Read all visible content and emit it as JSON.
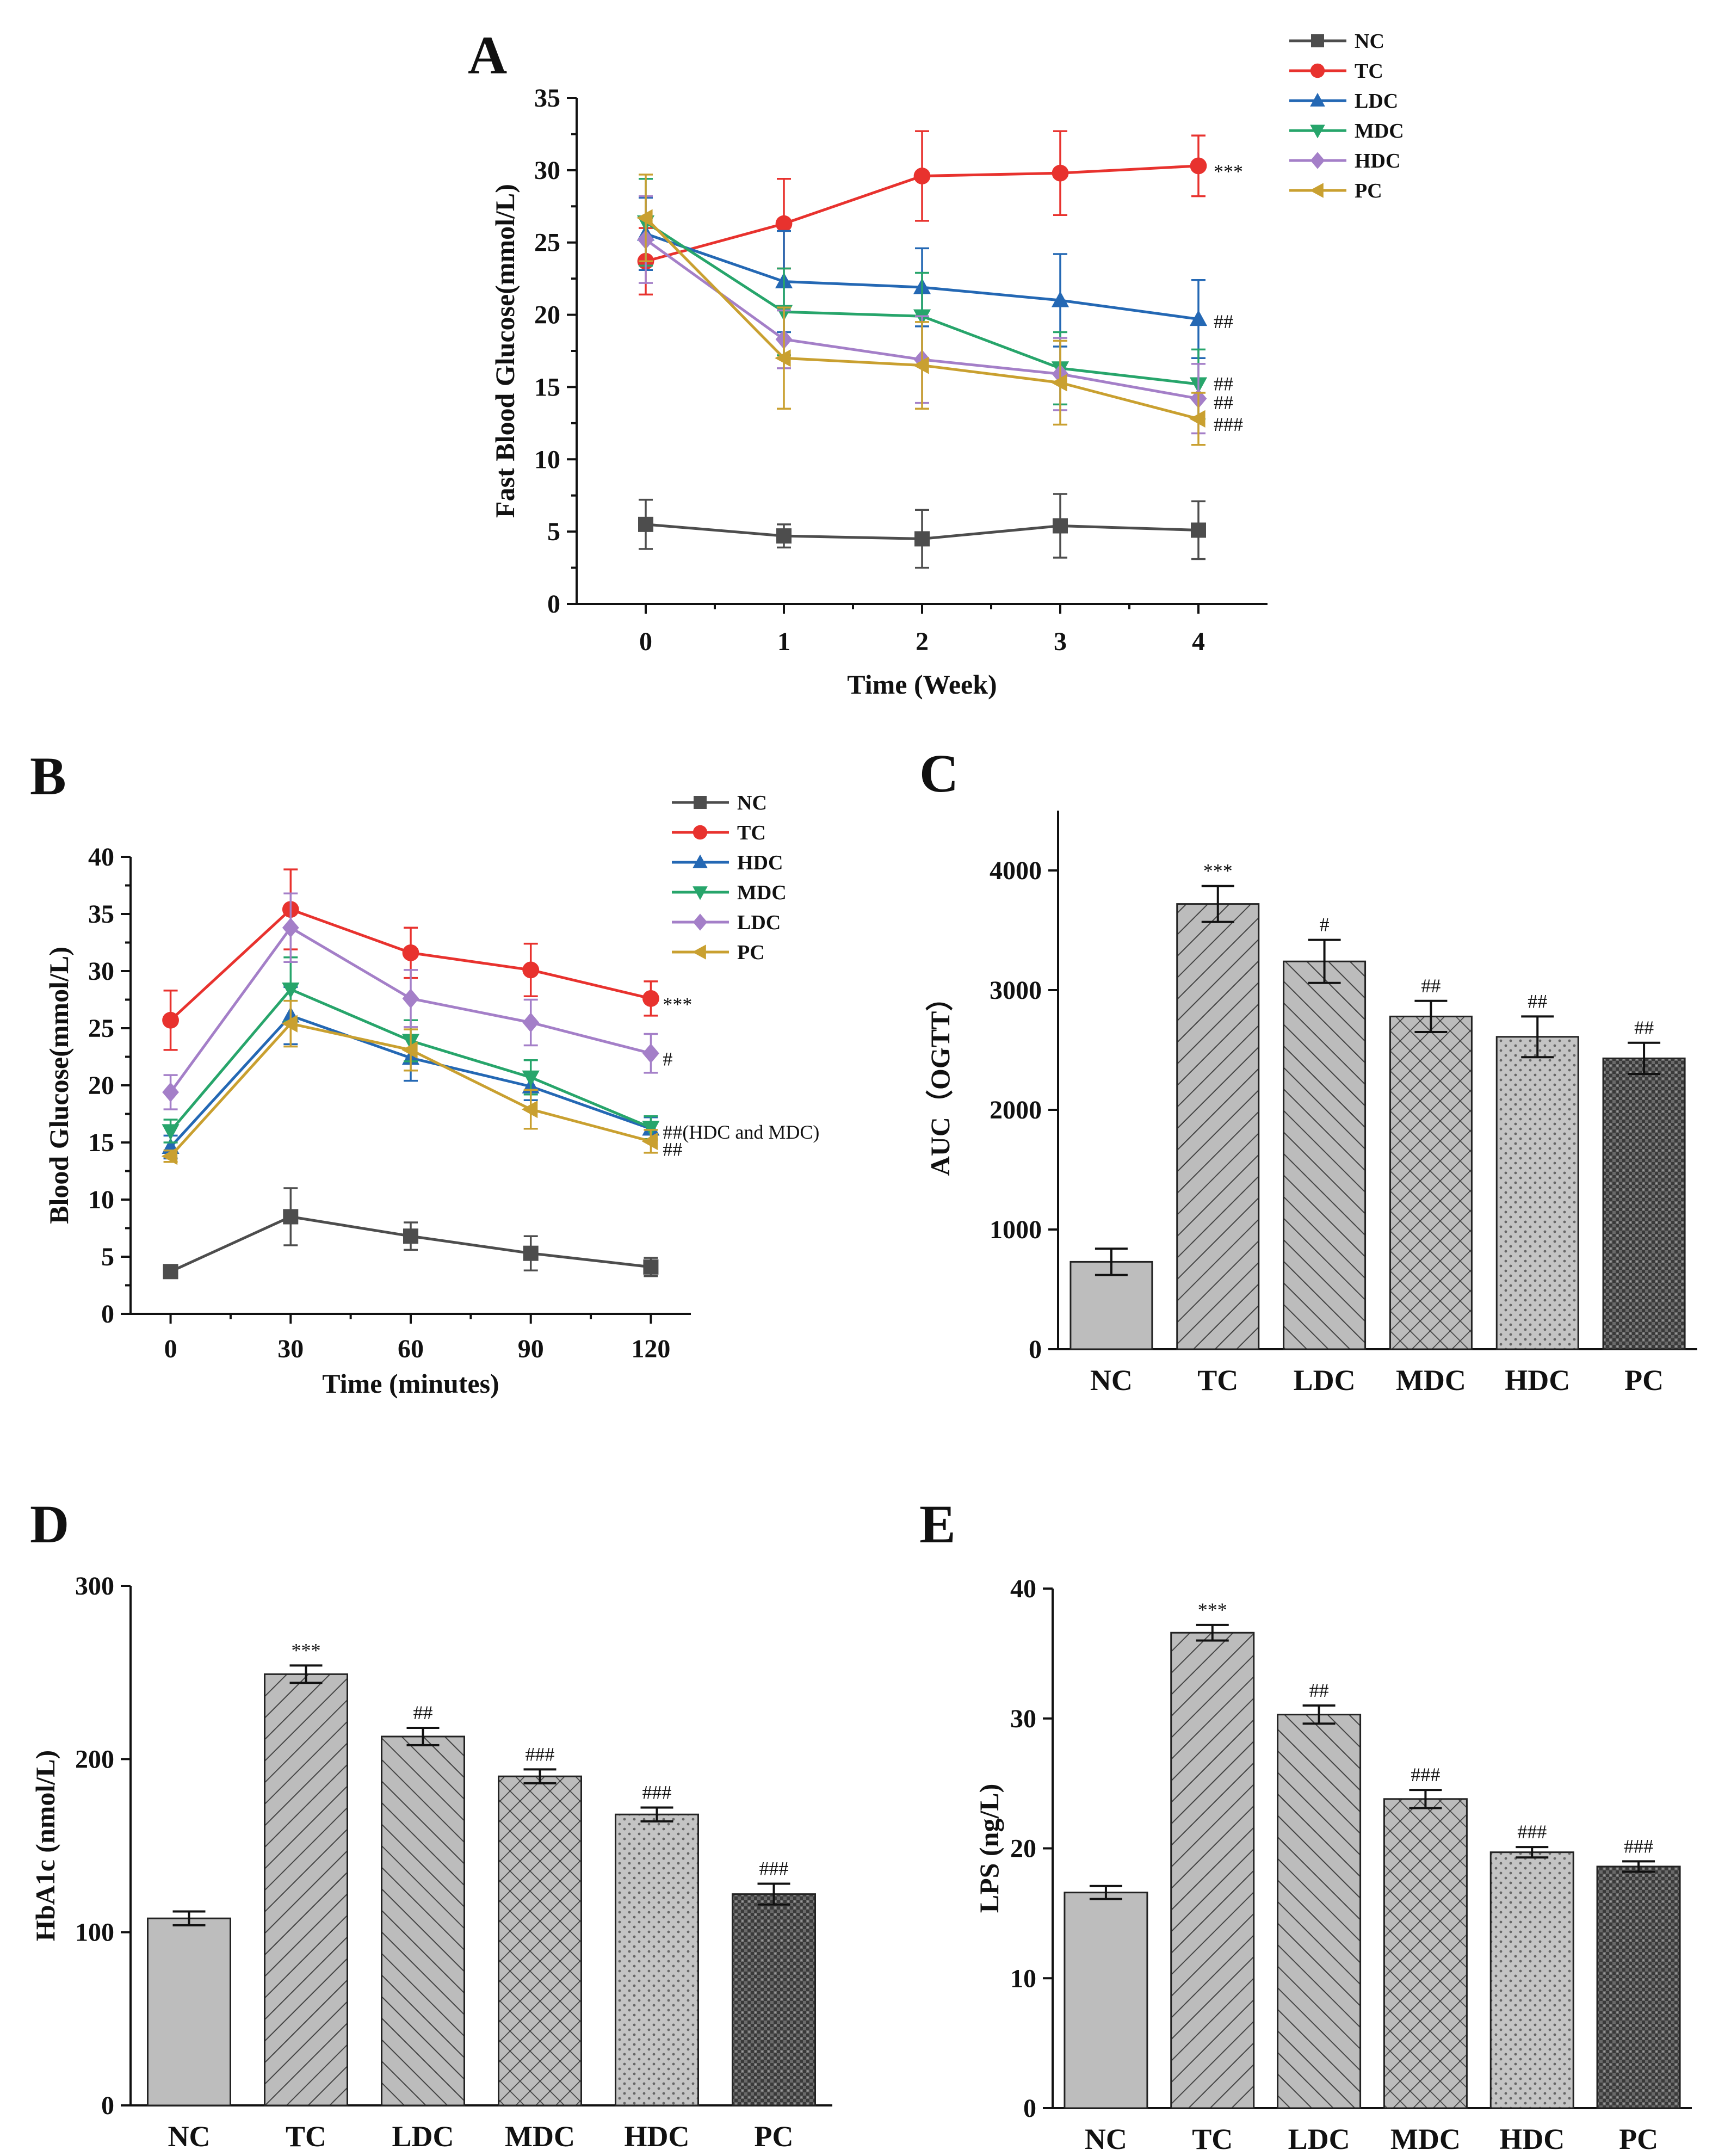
{
  "chart_data": [
    {
      "id": "A",
      "panel_label": "A",
      "type": "line",
      "xlabel": "Time (Week)",
      "ylabel": "Fast Blood Glucose(mmol/L)",
      "x": [
        0,
        1,
        2,
        3,
        4
      ],
      "xticks": [
        "0",
        "1",
        "2",
        "3",
        "4"
      ],
      "xlim": [
        -0.5,
        4.5
      ],
      "ylim": [
        0,
        35
      ],
      "yticks": [
        0,
        5,
        10,
        15,
        20,
        25,
        30,
        35
      ],
      "legend": {
        "position": "top-right",
        "labels": [
          "NC",
          "TC",
          "LDC",
          "MDC",
          "HDC",
          "PC"
        ]
      },
      "series": [
        {
          "name": "NC",
          "color": "#4d4d4d",
          "marker": "square",
          "values": [
            5.5,
            4.7,
            4.5,
            5.4,
            5.1
          ],
          "errors": [
            1.7,
            0.8,
            2.0,
            2.2,
            2.0
          ]
        },
        {
          "name": "TC",
          "color": "#e8322e",
          "marker": "circle",
          "values": [
            23.7,
            26.3,
            29.6,
            29.8,
            30.3
          ],
          "errors": [
            2.3,
            3.1,
            3.1,
            2.9,
            2.1
          ]
        },
        {
          "name": "LDC",
          "color": "#2468b4",
          "marker": "triangle-up",
          "values": [
            25.6,
            22.3,
            21.9,
            21.0,
            19.7
          ],
          "errors": [
            2.5,
            3.5,
            2.7,
            3.2,
            2.7
          ]
        },
        {
          "name": "MDC",
          "color": "#27a56b",
          "marker": "triangle-down",
          "values": [
            26.4,
            20.2,
            19.9,
            16.3,
            15.2
          ],
          "errors": [
            3.0,
            3.0,
            3.0,
            2.5,
            2.4
          ]
        },
        {
          "name": "HDC",
          "color": "#a47fc8",
          "marker": "diamond",
          "values": [
            25.2,
            18.3,
            16.9,
            15.9,
            14.2
          ],
          "errors": [
            3.0,
            2.0,
            3.0,
            2.5,
            2.4
          ]
        },
        {
          "name": "PC",
          "color": "#c9a030",
          "marker": "triangle-left",
          "values": [
            26.7,
            17.0,
            16.5,
            15.3,
            12.8
          ],
          "errors": [
            3.0,
            3.5,
            3.0,
            2.9,
            1.8
          ]
        }
      ],
      "annotations": [
        {
          "text": "***",
          "series": "TC",
          "x": 4,
          "y": 30.0
        },
        {
          "text": "##",
          "series": "LDC",
          "x": 4,
          "y": 19.6
        },
        {
          "text": "##",
          "series": "MDC",
          "x": 4,
          "y": 15.3
        },
        {
          "text": "##",
          "series": "HDC",
          "x": 4,
          "y": 14.0
        },
        {
          "text": "###",
          "series": "PC",
          "x": 4,
          "y": 12.5
        }
      ]
    },
    {
      "id": "B",
      "panel_label": "B",
      "type": "line",
      "xlabel": "Time (minutes)",
      "ylabel": "Blood Glucose(mmol/L)",
      "x": [
        0,
        30,
        60,
        90,
        120
      ],
      "xticks": [
        "0",
        "30",
        "60",
        "90",
        "120"
      ],
      "xlim": [
        -10,
        130
      ],
      "ylim": [
        0,
        40
      ],
      "yticks": [
        0,
        5,
        10,
        15,
        20,
        25,
        30,
        35,
        40
      ],
      "legend": {
        "position": "top-right",
        "labels": [
          "NC",
          "TC",
          "HDC",
          "MDC",
          "LDC",
          "PC"
        ]
      },
      "series": [
        {
          "name": "NC",
          "color": "#4d4d4d",
          "marker": "square",
          "values": [
            3.7,
            8.5,
            6.8,
            5.3,
            4.1
          ],
          "errors": [
            0.3,
            2.5,
            1.2,
            1.5,
            0.8
          ]
        },
        {
          "name": "TC",
          "color": "#e8322e",
          "marker": "circle",
          "values": [
            25.7,
            35.4,
            31.6,
            30.1,
            27.6
          ],
          "errors": [
            2.6,
            3.5,
            2.2,
            2.3,
            1.5
          ]
        },
        {
          "name": "HDC",
          "color": "#2468b4",
          "marker": "triangle-up",
          "values": [
            14.6,
            26.1,
            22.4,
            19.9,
            16.2
          ],
          "errors": [
            1.0,
            2.5,
            2.0,
            1.2,
            1.0
          ]
        },
        {
          "name": "MDC",
          "color": "#27a56b",
          "marker": "triangle-down",
          "values": [
            16.0,
            28.4,
            23.9,
            20.7,
            16.3
          ],
          "errors": [
            1.0,
            2.8,
            1.8,
            1.5,
            1.0
          ]
        },
        {
          "name": "LDC",
          "color": "#a47fc8",
          "marker": "diamond",
          "values": [
            19.4,
            33.8,
            27.6,
            25.5,
            22.8
          ],
          "errors": [
            1.5,
            3.0,
            2.5,
            2.0,
            1.7
          ]
        },
        {
          "name": "PC",
          "color": "#c9a030",
          "marker": "triangle-left",
          "values": [
            13.8,
            25.4,
            23.1,
            17.9,
            15.1
          ],
          "errors": [
            0.5,
            2.0,
            1.8,
            1.7,
            1.0
          ]
        }
      ],
      "annotations": [
        {
          "text": "***",
          "series": "TC",
          "x": 120,
          "y": 27.2
        },
        {
          "text": "#",
          "series": "LDC",
          "x": 120,
          "y": 22.4
        },
        {
          "text": "##(HDC and MDC)",
          "series": "MDC",
          "x": 120,
          "y": 16.0
        },
        {
          "text": "##",
          "series": "PC",
          "x": 120,
          "y": 14.5
        }
      ]
    },
    {
      "id": "C",
      "panel_label": "C",
      "type": "bar",
      "xlabel": "",
      "ylabel": "AUC（OGTT）",
      "categories": [
        "NC",
        "TC",
        "LDC",
        "MDC",
        "HDC",
        "PC"
      ],
      "values": [
        730,
        3720,
        3240,
        2780,
        2610,
        2430
      ],
      "errors": [
        110,
        150,
        180,
        130,
        170,
        130
      ],
      "labels": [
        "",
        "***",
        "#",
        "##",
        "##",
        "##"
      ],
      "ylim": [
        0,
        4500
      ],
      "yticks": [
        0,
        1000,
        2000,
        3000,
        4000
      ],
      "patterns": [
        "solid",
        "diag-right",
        "diag-left",
        "crosshatch",
        "dots",
        "fine-grid"
      ]
    },
    {
      "id": "D",
      "panel_label": "D",
      "type": "bar",
      "xlabel": "",
      "ylabel": "HbA1c (nmol/L)",
      "categories": [
        "NC",
        "TC",
        "LDC",
        "MDC",
        "HDC",
        "PC"
      ],
      "values": [
        108,
        249,
        213,
        190,
        168,
        122
      ],
      "errors": [
        4,
        5,
        5,
        4,
        4,
        6
      ],
      "labels": [
        "",
        "***",
        "##",
        "###",
        "###",
        "###"
      ],
      "ylim": [
        0,
        300
      ],
      "yticks": [
        0,
        100,
        200,
        300
      ],
      "patterns": [
        "solid",
        "diag-right",
        "diag-left",
        "crosshatch",
        "dots",
        "fine-grid"
      ]
    },
    {
      "id": "E",
      "panel_label": "E",
      "type": "bar",
      "xlabel": "",
      "ylabel": "LPS (ng/L)",
      "categories": [
        "NC",
        "TC",
        "LDC",
        "MDC",
        "HDC",
        "PC"
      ],
      "values": [
        16.6,
        36.6,
        30.3,
        23.8,
        19.7,
        18.6
      ],
      "errors": [
        0.5,
        0.6,
        0.7,
        0.7,
        0.4,
        0.4
      ],
      "labels": [
        "",
        "***",
        "##",
        "###",
        "###",
        "###"
      ],
      "ylim": [
        0,
        40
      ],
      "yticks": [
        0,
        10,
        20,
        30,
        40
      ],
      "patterns": [
        "solid",
        "diag-right",
        "diag-left",
        "crosshatch",
        "dots",
        "fine-grid"
      ]
    }
  ]
}
